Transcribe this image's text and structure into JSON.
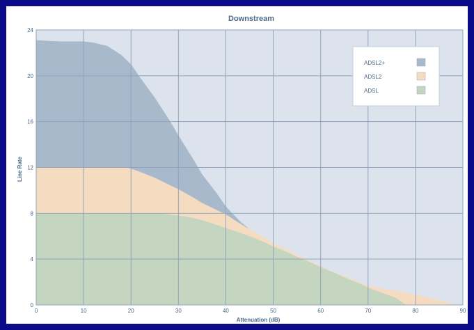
{
  "chart_data": {
    "type": "area",
    "title": "Downstream",
    "xlabel": "Attenuation (dB)",
    "ylabel": "Line Rate",
    "xlim": [
      0,
      90
    ],
    "ylim": [
      0,
      24
    ],
    "x_ticks": [
      "0",
      "10",
      "20",
      "30",
      "40",
      "50",
      "60",
      "70",
      "80",
      "90"
    ],
    "y_ticks": [
      "0",
      "4",
      "8",
      "12",
      "16",
      "20",
      "24"
    ],
    "grid": true,
    "legend_position": "top-right",
    "series": [
      {
        "name": "ADSL2+",
        "color": "#a9b9cc",
        "points": [
          [
            0,
            23.1
          ],
          [
            5,
            23.0
          ],
          [
            10,
            23.0
          ],
          [
            12,
            22.9
          ],
          [
            15,
            22.6
          ],
          [
            18,
            21.8
          ],
          [
            20,
            21.0
          ],
          [
            22,
            19.8
          ],
          [
            25,
            18.1
          ],
          [
            28,
            16.2
          ],
          [
            30,
            14.8
          ],
          [
            33,
            12.8
          ],
          [
            35,
            11.4
          ],
          [
            38,
            9.8
          ],
          [
            40,
            8.6
          ],
          [
            43,
            7.3
          ],
          [
            45,
            6.6
          ],
          [
            48,
            5.7
          ],
          [
            50,
            5.2
          ],
          [
            52,
            4.9
          ]
        ]
      },
      {
        "name": "ADSL2",
        "color": "#f5dcc0",
        "points": [
          [
            0,
            12.0
          ],
          [
            10,
            12.0
          ],
          [
            15,
            12.0
          ],
          [
            19,
            12.0
          ],
          [
            20,
            11.9
          ],
          [
            22,
            11.6
          ],
          [
            25,
            11.1
          ],
          [
            28,
            10.5
          ],
          [
            30,
            10.1
          ],
          [
            33,
            9.4
          ],
          [
            35,
            8.9
          ],
          [
            38,
            8.3
          ],
          [
            40,
            7.9
          ],
          [
            43,
            7.1
          ],
          [
            45,
            6.6
          ],
          [
            48,
            5.9
          ],
          [
            50,
            5.4
          ],
          [
            53,
            4.8
          ],
          [
            55,
            4.4
          ],
          [
            58,
            3.8
          ],
          [
            60,
            3.4
          ],
          [
            63,
            2.8
          ],
          [
            65,
            2.5
          ],
          [
            68,
            2.0
          ],
          [
            70,
            1.7
          ],
          [
            72,
            1.5
          ],
          [
            75,
            1.3
          ],
          [
            78,
            1.1
          ],
          [
            80,
            0.9
          ],
          [
            82,
            0.7
          ],
          [
            84,
            0.5
          ],
          [
            86,
            0.3
          ],
          [
            88,
            0.1
          ],
          [
            89,
            0.0
          ]
        ]
      },
      {
        "name": "ADSL",
        "color": "#c4d5c0",
        "points": [
          [
            0,
            8.0
          ],
          [
            10,
            8.0
          ],
          [
            15,
            8.0
          ],
          [
            20,
            8.0
          ],
          [
            25,
            8.0
          ],
          [
            28,
            7.9
          ],
          [
            30,
            7.8
          ],
          [
            33,
            7.6
          ],
          [
            35,
            7.4
          ],
          [
            38,
            7.0
          ],
          [
            40,
            6.7
          ],
          [
            43,
            6.3
          ],
          [
            45,
            6.0
          ],
          [
            48,
            5.5
          ],
          [
            50,
            5.1
          ],
          [
            53,
            4.6
          ],
          [
            55,
            4.2
          ],
          [
            58,
            3.7
          ],
          [
            60,
            3.3
          ],
          [
            63,
            2.8
          ],
          [
            65,
            2.4
          ],
          [
            68,
            1.9
          ],
          [
            70,
            1.5
          ],
          [
            72,
            1.2
          ],
          [
            74,
            0.9
          ],
          [
            76,
            0.6
          ],
          [
            77,
            0.3
          ],
          [
            78,
            0.0
          ]
        ]
      }
    ]
  }
}
